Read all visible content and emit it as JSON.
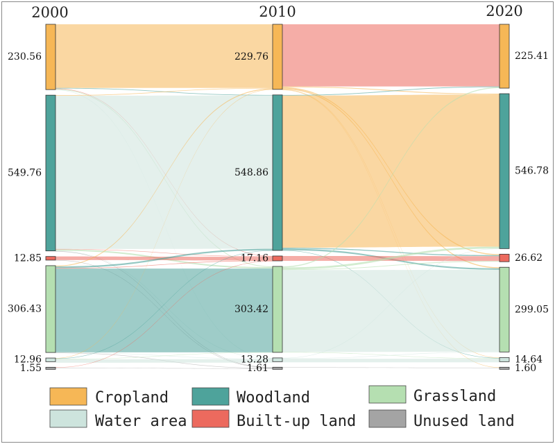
{
  "chart_data": {
    "type": "sankey",
    "title": "",
    "years": [
      "2000",
      "2010",
      "2020"
    ],
    "categories": [
      "Cropland",
      "Woodland",
      "Built-up land",
      "Grassland",
      "Water area",
      "Unused land"
    ],
    "stacking_order": [
      "Cropland",
      "Woodland",
      "Built-up land",
      "Grassland",
      "Water area",
      "Unused land"
    ],
    "colors": {
      "Cropland": "#f6b756",
      "Woodland": "#4ea39b",
      "Grassland": "#b5dfb1",
      "Water area": "#cde4dd",
      "Built-up land": "#ec6a5e",
      "Unused land": "#a4a4a4"
    },
    "node_values": {
      "2000": {
        "Cropland": 230.56,
        "Woodland": 549.76,
        "Built-up land": 12.85,
        "Grassland": 306.43,
        "Water area": 12.96,
        "Unused land": 1.55
      },
      "2010": {
        "Cropland": 229.76,
        "Woodland": 548.86,
        "Built-up land": 17.16,
        "Grassland": 303.42,
        "Water area": 13.28,
        "Unused land": 1.61
      },
      "2020": {
        "Cropland": 225.41,
        "Woodland": 546.78,
        "Built-up land": 26.62,
        "Grassland": 299.05,
        "Water area": 14.64,
        "Unused land": 1.6
      }
    },
    "node_labels": {
      "2000": {
        "Cropland": "230.56",
        "Woodland": "549.76",
        "Built-up land": "12.85",
        "Grassland": "306.43",
        "Water area": "12.96",
        "Unused land": "1.55"
      },
      "2010": {
        "Cropland": "229.76",
        "Woodland": "548.86",
        "Built-up land": "17.16",
        "Grassland": "303.42",
        "Water area": "13.28",
        "Unused land": "1.61"
      },
      "2020": {
        "Cropland": "225.41",
        "Woodland": "546.78",
        "Built-up land": "26.62",
        "Grassland": "299.05",
        "Water area": "14.64",
        "Unused land": "1.60"
      }
    },
    "flows": [
      {
        "period": "2000-2010",
        "from": "Cropland",
        "to": "Cropland",
        "value": 224.8
      },
      {
        "period": "2000-2010",
        "from": "Cropland",
        "to": "Woodland",
        "value": 2.0
      },
      {
        "period": "2000-2010",
        "from": "Cropland",
        "to": "Built-up land",
        "value": 1.0
      },
      {
        "period": "2000-2010",
        "from": "Cropland",
        "to": "Grassland",
        "value": 2.6
      },
      {
        "period": "2000-2010",
        "from": "Cropland",
        "to": "Water area",
        "value": 0.1
      },
      {
        "period": "2000-2010",
        "from": "Woodland",
        "to": "Cropland",
        "value": 2.0
      },
      {
        "period": "2000-2010",
        "from": "Woodland",
        "to": "Woodland",
        "value": 541.0
      },
      {
        "period": "2000-2010",
        "from": "Woodland",
        "to": "Built-up land",
        "value": 1.4
      },
      {
        "period": "2000-2010",
        "from": "Woodland",
        "to": "Grassland",
        "value": 5.0
      },
      {
        "period": "2000-2010",
        "from": "Woodland",
        "to": "Water area",
        "value": 0.3
      },
      {
        "period": "2000-2010",
        "from": "Woodland",
        "to": "Unused land",
        "value": 0.06
      },
      {
        "period": "2000-2010",
        "from": "Built-up land",
        "to": "Built-up land",
        "value": 12.8
      },
      {
        "period": "2000-2010",
        "from": "Built-up land",
        "to": "Unused land",
        "value": 0.05
      },
      {
        "period": "2000-2010",
        "from": "Grassland",
        "to": "Cropland",
        "value": 2.8
      },
      {
        "period": "2000-2010",
        "from": "Grassland",
        "to": "Woodland",
        "value": 5.5
      },
      {
        "period": "2000-2010",
        "from": "Grassland",
        "to": "Built-up land",
        "value": 1.9
      },
      {
        "period": "2000-2010",
        "from": "Grassland",
        "to": "Grassland",
        "value": 295.6
      },
      {
        "period": "2000-2010",
        "from": "Grassland",
        "to": "Water area",
        "value": 0.6
      },
      {
        "period": "2000-2010",
        "from": "Grassland",
        "to": "Unused land",
        "value": 0.03
      },
      {
        "period": "2000-2010",
        "from": "Water area",
        "to": "Cropland",
        "value": 0.16
      },
      {
        "period": "2000-2010",
        "from": "Water area",
        "to": "Woodland",
        "value": 0.36
      },
      {
        "period": "2000-2010",
        "from": "Water area",
        "to": "Grassland",
        "value": 0.22
      },
      {
        "period": "2000-2010",
        "from": "Water area",
        "to": "Water area",
        "value": 12.2
      },
      {
        "period": "2000-2010",
        "from": "Unused land",
        "to": "Built-up land",
        "value": 0.06
      },
      {
        "period": "2000-2010",
        "from": "Unused land",
        "to": "Unused land",
        "value": 1.47
      },
      {
        "period": "2010-2020",
        "from": "Cropland",
        "to": "Cropland",
        "value": 219.4
      },
      {
        "period": "2010-2020",
        "from": "Cropland",
        "to": "Woodland",
        "value": 2.8
      },
      {
        "period": "2010-2020",
        "from": "Cropland",
        "to": "Built-up land",
        "value": 3.5
      },
      {
        "period": "2010-2020",
        "from": "Cropland",
        "to": "Grassland",
        "value": 3.6
      },
      {
        "period": "2010-2020",
        "from": "Cropland",
        "to": "Water area",
        "value": 0.4
      },
      {
        "period": "2010-2020",
        "from": "Cropland",
        "to": "Unused land",
        "value": 0.06
      },
      {
        "period": "2010-2020",
        "from": "Woodland",
        "to": "Cropland",
        "value": 2.4
      },
      {
        "period": "2010-2020",
        "from": "Woodland",
        "to": "Woodland",
        "value": 536.9
      },
      {
        "period": "2010-2020",
        "from": "Woodland",
        "to": "Built-up land",
        "value": 3.5
      },
      {
        "period": "2010-2020",
        "from": "Woodland",
        "to": "Grassland",
        "value": 5.4
      },
      {
        "period": "2010-2020",
        "from": "Woodland",
        "to": "Water area",
        "value": 0.66
      },
      {
        "period": "2010-2020",
        "from": "Built-up land",
        "to": "Built-up land",
        "value": 17.16
      },
      {
        "period": "2010-2020",
        "from": "Grassland",
        "to": "Cropland",
        "value": 3.6
      },
      {
        "period": "2010-2020",
        "from": "Grassland",
        "to": "Woodland",
        "value": 6.9
      },
      {
        "period": "2010-2020",
        "from": "Grassland",
        "to": "Built-up land",
        "value": 2.4
      },
      {
        "period": "2010-2020",
        "from": "Grassland",
        "to": "Grassland",
        "value": 289.5
      },
      {
        "period": "2010-2020",
        "from": "Grassland",
        "to": "Water area",
        "value": 1.0
      },
      {
        "period": "2010-2020",
        "from": "Water area",
        "to": "Woodland",
        "value": 0.18
      },
      {
        "period": "2010-2020",
        "from": "Water area",
        "to": "Grassland",
        "value": 0.55
      },
      {
        "period": "2010-2020",
        "from": "Water area",
        "to": "Water area",
        "value": 12.55
      },
      {
        "period": "2010-2020",
        "from": "Unused land",
        "to": "Unused land",
        "value": 1.61
      }
    ]
  },
  "legend": [
    {
      "key": "Cropland",
      "label": "Cropland",
      "color": "#f6b756"
    },
    {
      "key": "Woodland",
      "label": "Woodland",
      "color": "#4ea39b"
    },
    {
      "key": "Grassland",
      "label": "Grassland",
      "color": "#b5dfb1"
    },
    {
      "key": "Water area",
      "label": "Water area",
      "color": "#cde4dd"
    },
    {
      "key": "Built-up land",
      "label": "Built-up land",
      "color": "#ec6a5e"
    },
    {
      "key": "Unused land",
      "label": "Unused land",
      "color": "#a4a4a4"
    }
  ]
}
